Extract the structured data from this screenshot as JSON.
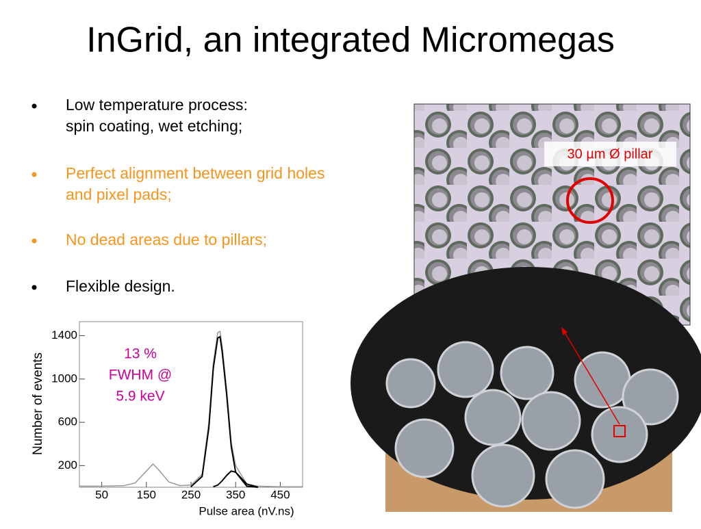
{
  "title": "InGrid, an integrated Micromegas",
  "bullets": [
    {
      "lines": [
        "Low temperature process:",
        "spin coating, wet etching;"
      ],
      "color": "#000000"
    },
    {
      "lines": [
        "Perfect alignment between grid holes",
        "and pixel pads;"
      ],
      "color": "#f7941d"
    },
    {
      "lines": [
        "No dead areas due to pillars;"
      ],
      "color": "#f7941d"
    },
    {
      "lines": [
        "Flexible design."
      ],
      "color": "#000000"
    }
  ],
  "photo_label": "30 µm Ø pillar",
  "chart_data": {
    "type": "line",
    "y_label": "Number of events",
    "x_label": "Pulse area (nV.ns)",
    "annotation": [
      "13 %",
      "FWHM @",
      "5.9 keV"
    ],
    "annotation_color": "#cc0099",
    "x": [
      0,
      50,
      100,
      125,
      150,
      165,
      180,
      200,
      225,
      250,
      275,
      290,
      300,
      310,
      315,
      320,
      330,
      340,
      350,
      375,
      400,
      450,
      500
    ],
    "series": [
      {
        "color": "#999999",
        "values": [
          10,
          10,
          15,
          40,
          150,
          215,
          150,
          50,
          15,
          20,
          120,
          600,
          1150,
          1430,
          1440,
          1300,
          900,
          420,
          200,
          30,
          10,
          5,
          5
        ]
      },
      {
        "color": "#000000",
        "values": [
          null,
          null,
          null,
          null,
          null,
          null,
          null,
          null,
          null,
          5,
          100,
          550,
          1100,
          1380,
          1390,
          1250,
          850,
          380,
          140,
          10,
          0,
          null,
          null
        ]
      },
      {
        "color": "#000000",
        "values": [
          null,
          null,
          null,
          null,
          null,
          null,
          null,
          null,
          null,
          null,
          null,
          null,
          5,
          20,
          40,
          60,
          110,
          150,
          140,
          30,
          0,
          null,
          null
        ]
      }
    ],
    "xlim": [
      0,
      500
    ],
    "ylim": [
      0,
      1530
    ],
    "xticks": [
      50,
      150,
      250,
      350,
      450
    ],
    "yticks": [
      200,
      600,
      1000,
      1400
    ]
  }
}
